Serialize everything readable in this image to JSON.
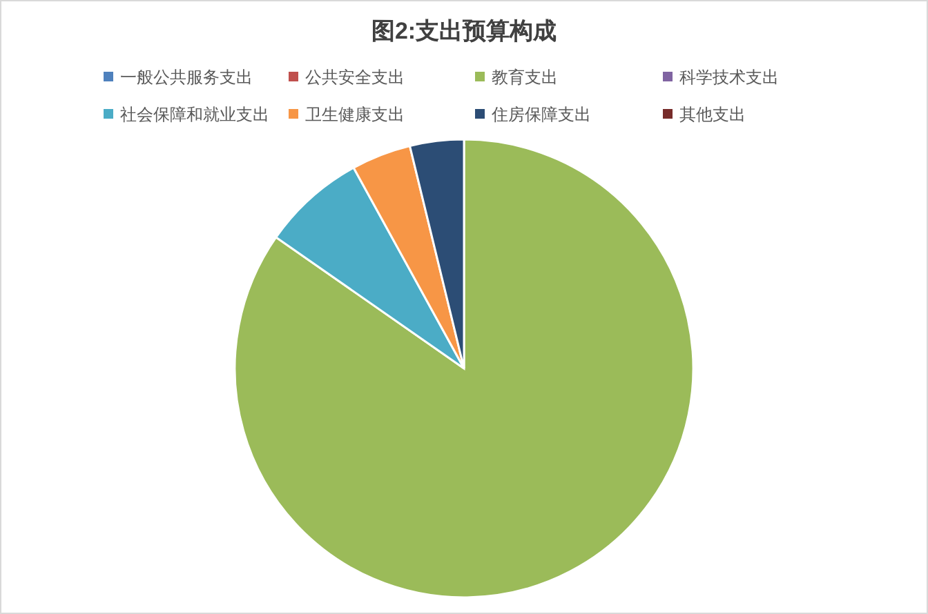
{
  "chart_data": {
    "type": "pie",
    "title": "图2:支出预算构成",
    "categories": [
      "一般公共服务支出",
      "公共安全支出",
      "教育支出",
      "科学技术支出",
      "社会保障和就业支出",
      "卫生健康支出",
      "住房保障支出",
      "其他支出"
    ],
    "values": [
      0,
      0,
      84.7,
      0,
      7.3,
      4.2,
      3.8,
      0
    ],
    "colors": [
      "#4f81bd",
      "#c0504d",
      "#9bbb59",
      "#8064a2",
      "#4bacc6",
      "#f79646",
      "#2c4d75",
      "#772c2a"
    ],
    "legend": "top"
  }
}
